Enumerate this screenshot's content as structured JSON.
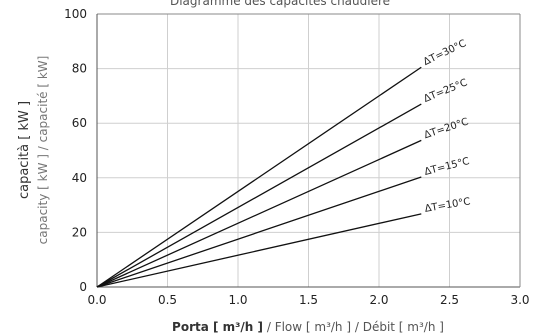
{
  "chart_data": {
    "type": "line",
    "title": "Diagramme des capacités chaudière",
    "xlabel_main": "Porta  [ m³/h ]",
    "xlabel_rest": " / Flow  [ m³/h ] / Débit [ m³/h ]",
    "ylabel_main": "capacità  [ kW ]",
    "ylabel_rest": "capacity  [ kW ] / capacité  [ kW]",
    "xlim": [
      0,
      3.0
    ],
    "ylim": [
      0,
      100
    ],
    "xticks": [
      "0.0",
      "0.5",
      "1.0",
      "1.5",
      "2.0",
      "2.5",
      "3.0"
    ],
    "yticks": [
      "0",
      "20",
      "40",
      "60",
      "80",
      "100"
    ],
    "grid": true,
    "series": [
      {
        "name": "ΔT=30°C",
        "x": [
          0,
          2.3
        ],
        "y": [
          0,
          80.5
        ]
      },
      {
        "name": "ΔT=25°C",
        "x": [
          0,
          2.3
        ],
        "y": [
          0,
          67
        ]
      },
      {
        "name": "ΔT=20°C",
        "x": [
          0,
          2.3
        ],
        "y": [
          0,
          53.7
        ]
      },
      {
        "name": "ΔT=15°C",
        "x": [
          0,
          2.3
        ],
        "y": [
          0,
          40.3
        ]
      },
      {
        "name": "ΔT=10°C",
        "x": [
          0,
          2.3
        ],
        "y": [
          0,
          26.8
        ]
      }
    ]
  }
}
